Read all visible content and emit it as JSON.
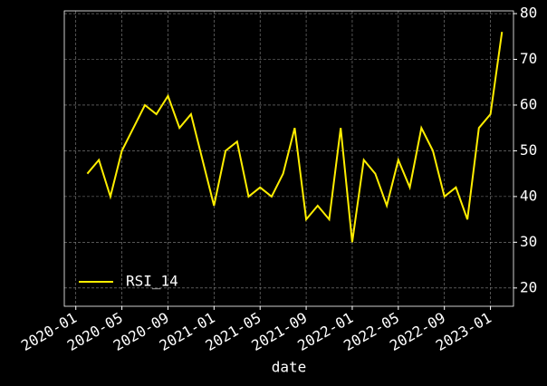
{
  "chart_data": {
    "type": "line",
    "xlabel": "date",
    "x": [
      "2020-02",
      "2020-03",
      "2020-04",
      "2020-05",
      "2020-06",
      "2020-07",
      "2020-08",
      "2020-09",
      "2020-10",
      "2020-11",
      "2020-12",
      "2021-01",
      "2021-02",
      "2021-03",
      "2021-04",
      "2021-05",
      "2021-06",
      "2021-07",
      "2021-08",
      "2021-09",
      "2021-10",
      "2021-11",
      "2021-12",
      "2022-01",
      "2022-02",
      "2022-03",
      "2022-04",
      "2022-05",
      "2022-06",
      "2022-07",
      "2022-08",
      "2022-09",
      "2022-10",
      "2022-11",
      "2022-12",
      "2023-01",
      "2023-02"
    ],
    "series": [
      {
        "name": "RSI_14",
        "color": "#ffee00",
        "values": [
          45,
          48,
          40,
          50,
          55,
          60,
          58,
          62,
          55,
          58,
          48,
          38,
          50,
          52,
          40,
          42,
          40,
          45,
          55,
          35,
          38,
          35,
          55,
          30,
          48,
          45,
          38,
          48,
          42,
          55,
          50,
          40,
          42,
          35,
          55,
          58,
          76
        ]
      }
    ],
    "xlim": [
      "2019-12",
      "2023-03"
    ],
    "xticks": [
      "2020-01",
      "2020-05",
      "2020-09",
      "2021-01",
      "2021-05",
      "2021-09",
      "2022-01",
      "2022-05",
      "2022-09",
      "2023-01"
    ],
    "ylim": [
      16,
      80.6
    ],
    "yticks": [
      20,
      30,
      40,
      50,
      60,
      70,
      80
    ],
    "grid": true,
    "legend": "lower left",
    "yaxis_side": "right"
  }
}
